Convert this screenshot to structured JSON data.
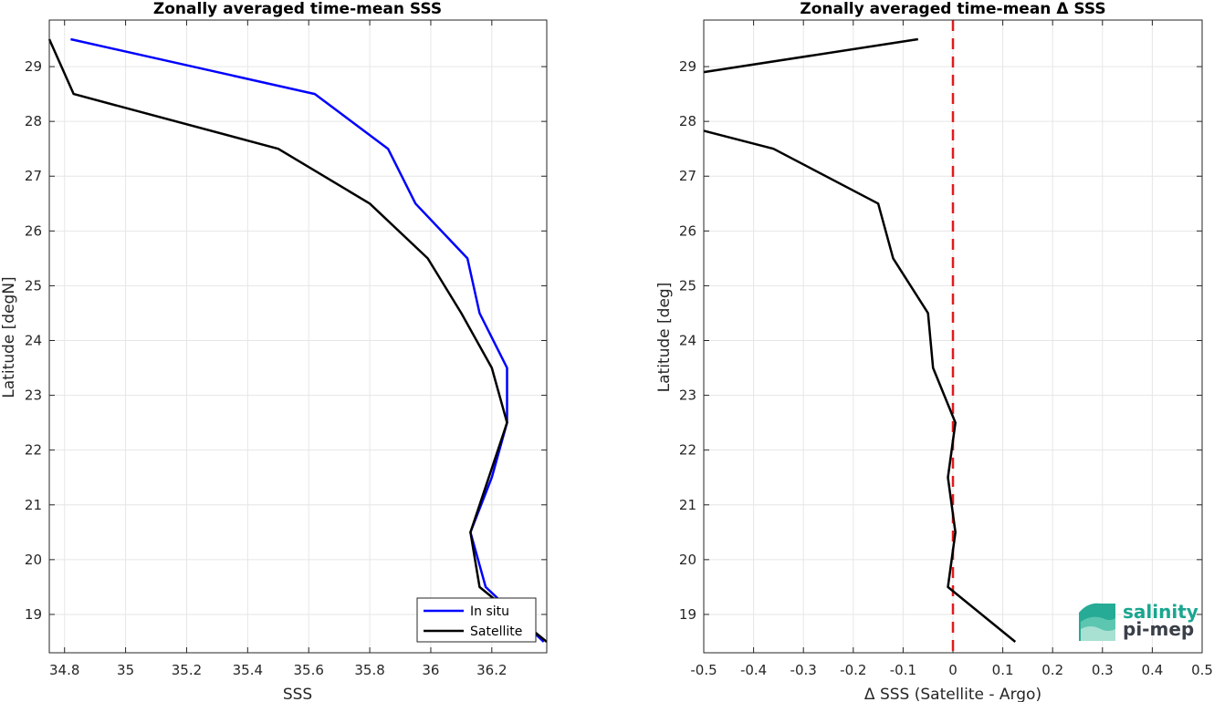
{
  "colors": {
    "in_situ": "#0000ff",
    "satellite": "#000000",
    "zero_line": "#e31a1c",
    "logo_teal": "#1aa690",
    "logo_dark": "#3a3f48"
  },
  "logo": {
    "line1": "salinity",
    "line2": "pi-mep"
  },
  "chart_data": [
    {
      "type": "line",
      "title": "Zonally averaged time-mean SSS",
      "xlabel": "SSS",
      "ylabel": "Latitude [degN]",
      "xlim": [
        34.75,
        36.38
      ],
      "ylim": [
        18.3,
        29.85
      ],
      "xticks": [
        34.8,
        35,
        35.2,
        35.4,
        35.6,
        35.8,
        36,
        36.2
      ],
      "xtick_labels": [
        "34.8",
        "35",
        "35.2",
        "35.4",
        "35.6",
        "35.8",
        "36",
        "36.2"
      ],
      "yticks": [
        19,
        20,
        21,
        22,
        23,
        24,
        25,
        26,
        27,
        28,
        29
      ],
      "ytick_labels": [
        "19",
        "20",
        "21",
        "22",
        "23",
        "24",
        "25",
        "26",
        "27",
        "28",
        "29"
      ],
      "grid": true,
      "legend": "bottom-right",
      "series": [
        {
          "name": "In situ",
          "color_key": "in_situ",
          "x": [
            36.37,
            36.18,
            36.13,
            36.2,
            36.25,
            36.25,
            36.16,
            36.12,
            35.95,
            35.86,
            35.62,
            34.82
          ],
          "y": [
            18.5,
            19.5,
            20.5,
            21.5,
            22.5,
            23.5,
            24.5,
            25.5,
            26.5,
            27.5,
            28.5,
            29.5
          ]
        },
        {
          "name": "Satellite",
          "color_key": "satellite",
          "x": [
            36.38,
            36.16,
            36.13,
            36.19,
            36.25,
            36.2,
            36.1,
            35.99,
            35.8,
            35.5,
            34.83,
            34.75
          ],
          "y": [
            18.5,
            19.5,
            20.5,
            21.5,
            22.5,
            23.5,
            24.5,
            25.5,
            26.5,
            27.5,
            28.5,
            29.5
          ]
        }
      ]
    },
    {
      "type": "line",
      "title": "Zonally averaged time-mean Δ SSS",
      "xlabel": "Δ SSS (Satellite - Argo)",
      "ylabel": "Latitude [deg]",
      "xlim": [
        -0.5,
        0.5
      ],
      "ylim": [
        18.3,
        29.85
      ],
      "xticks": [
        -0.5,
        -0.4,
        -0.3,
        -0.2,
        -0.1,
        0,
        0.1,
        0.2,
        0.3,
        0.4,
        0.5
      ],
      "xtick_labels": [
        "-0.5",
        "-0.4",
        "-0.3",
        "-0.2",
        "-0.1",
        "0",
        "0.1",
        "0.2",
        "0.3",
        "0.4",
        "0.5"
      ],
      "yticks": [
        19,
        20,
        21,
        22,
        23,
        24,
        25,
        26,
        27,
        28,
        29
      ],
      "ytick_labels": [
        "19",
        "20",
        "21",
        "22",
        "23",
        "24",
        "25",
        "26",
        "27",
        "28",
        "29"
      ],
      "grid": true,
      "reference_line": {
        "x": 0,
        "style": "dashed",
        "color_key": "zero_line"
      },
      "series": [
        {
          "color_key": "satellite",
          "x": [
            0.125,
            -0.01,
            0.005,
            -0.01,
            0.005,
            -0.04,
            -0.05,
            -0.12,
            -0.15,
            -0.36,
            -0.5
          ],
          "y": [
            18.5,
            19.5,
            20.5,
            21.5,
            22.5,
            23.5,
            24.5,
            25.5,
            26.5,
            27.5,
            27.83
          ]
        },
        {
          "color_key": "satellite",
          "x": [
            -0.5,
            -0.07
          ],
          "y": [
            28.9,
            29.5
          ]
        }
      ]
    }
  ]
}
